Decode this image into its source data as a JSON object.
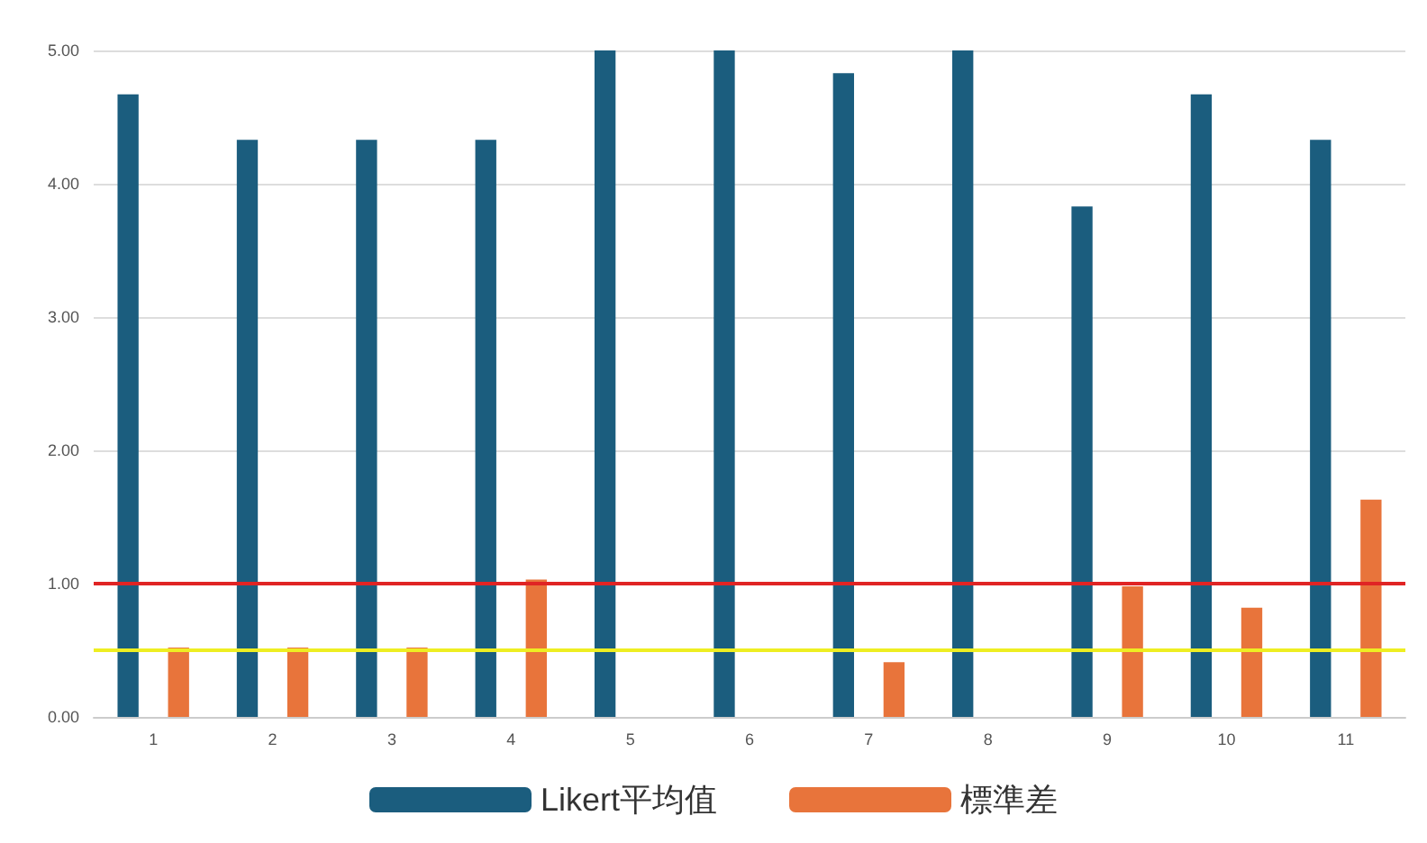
{
  "chart_data": {
    "type": "bar",
    "categories": [
      "1",
      "2",
      "3",
      "4",
      "5",
      "6",
      "7",
      "8",
      "9",
      "10",
      "11"
    ],
    "series": [
      {
        "name": "Likert平均值",
        "color": "#1b5d7e",
        "values": [
          4.67,
          4.33,
          4.33,
          4.33,
          5,
          5,
          4.83,
          5,
          3.83,
          4.67,
          4.33
        ]
      },
      {
        "name": "標準差",
        "color": "#e8743b",
        "values": [
          0.52,
          0.52,
          0.52,
          1.03,
          0,
          0,
          0.41,
          0,
          0.98,
          0.82,
          1.63
        ]
      }
    ],
    "ylim": [
      0,
      5
    ],
    "yticks": [
      {
        "value": 0,
        "label": "0.00"
      },
      {
        "value": 1,
        "label": "1.00"
      },
      {
        "value": 2,
        "label": "2.00"
      },
      {
        "value": 3,
        "label": "3.00"
      },
      {
        "value": 4,
        "label": "4.00"
      },
      {
        "value": 5,
        "label": "5.00"
      }
    ],
    "ref_lines": [
      {
        "axis": "y",
        "value": 1,
        "color": "#e02424"
      },
      {
        "axis": "y",
        "value": 0.5,
        "color": "#eeee22"
      }
    ],
    "grid": "y",
    "legend": "bottom"
  }
}
